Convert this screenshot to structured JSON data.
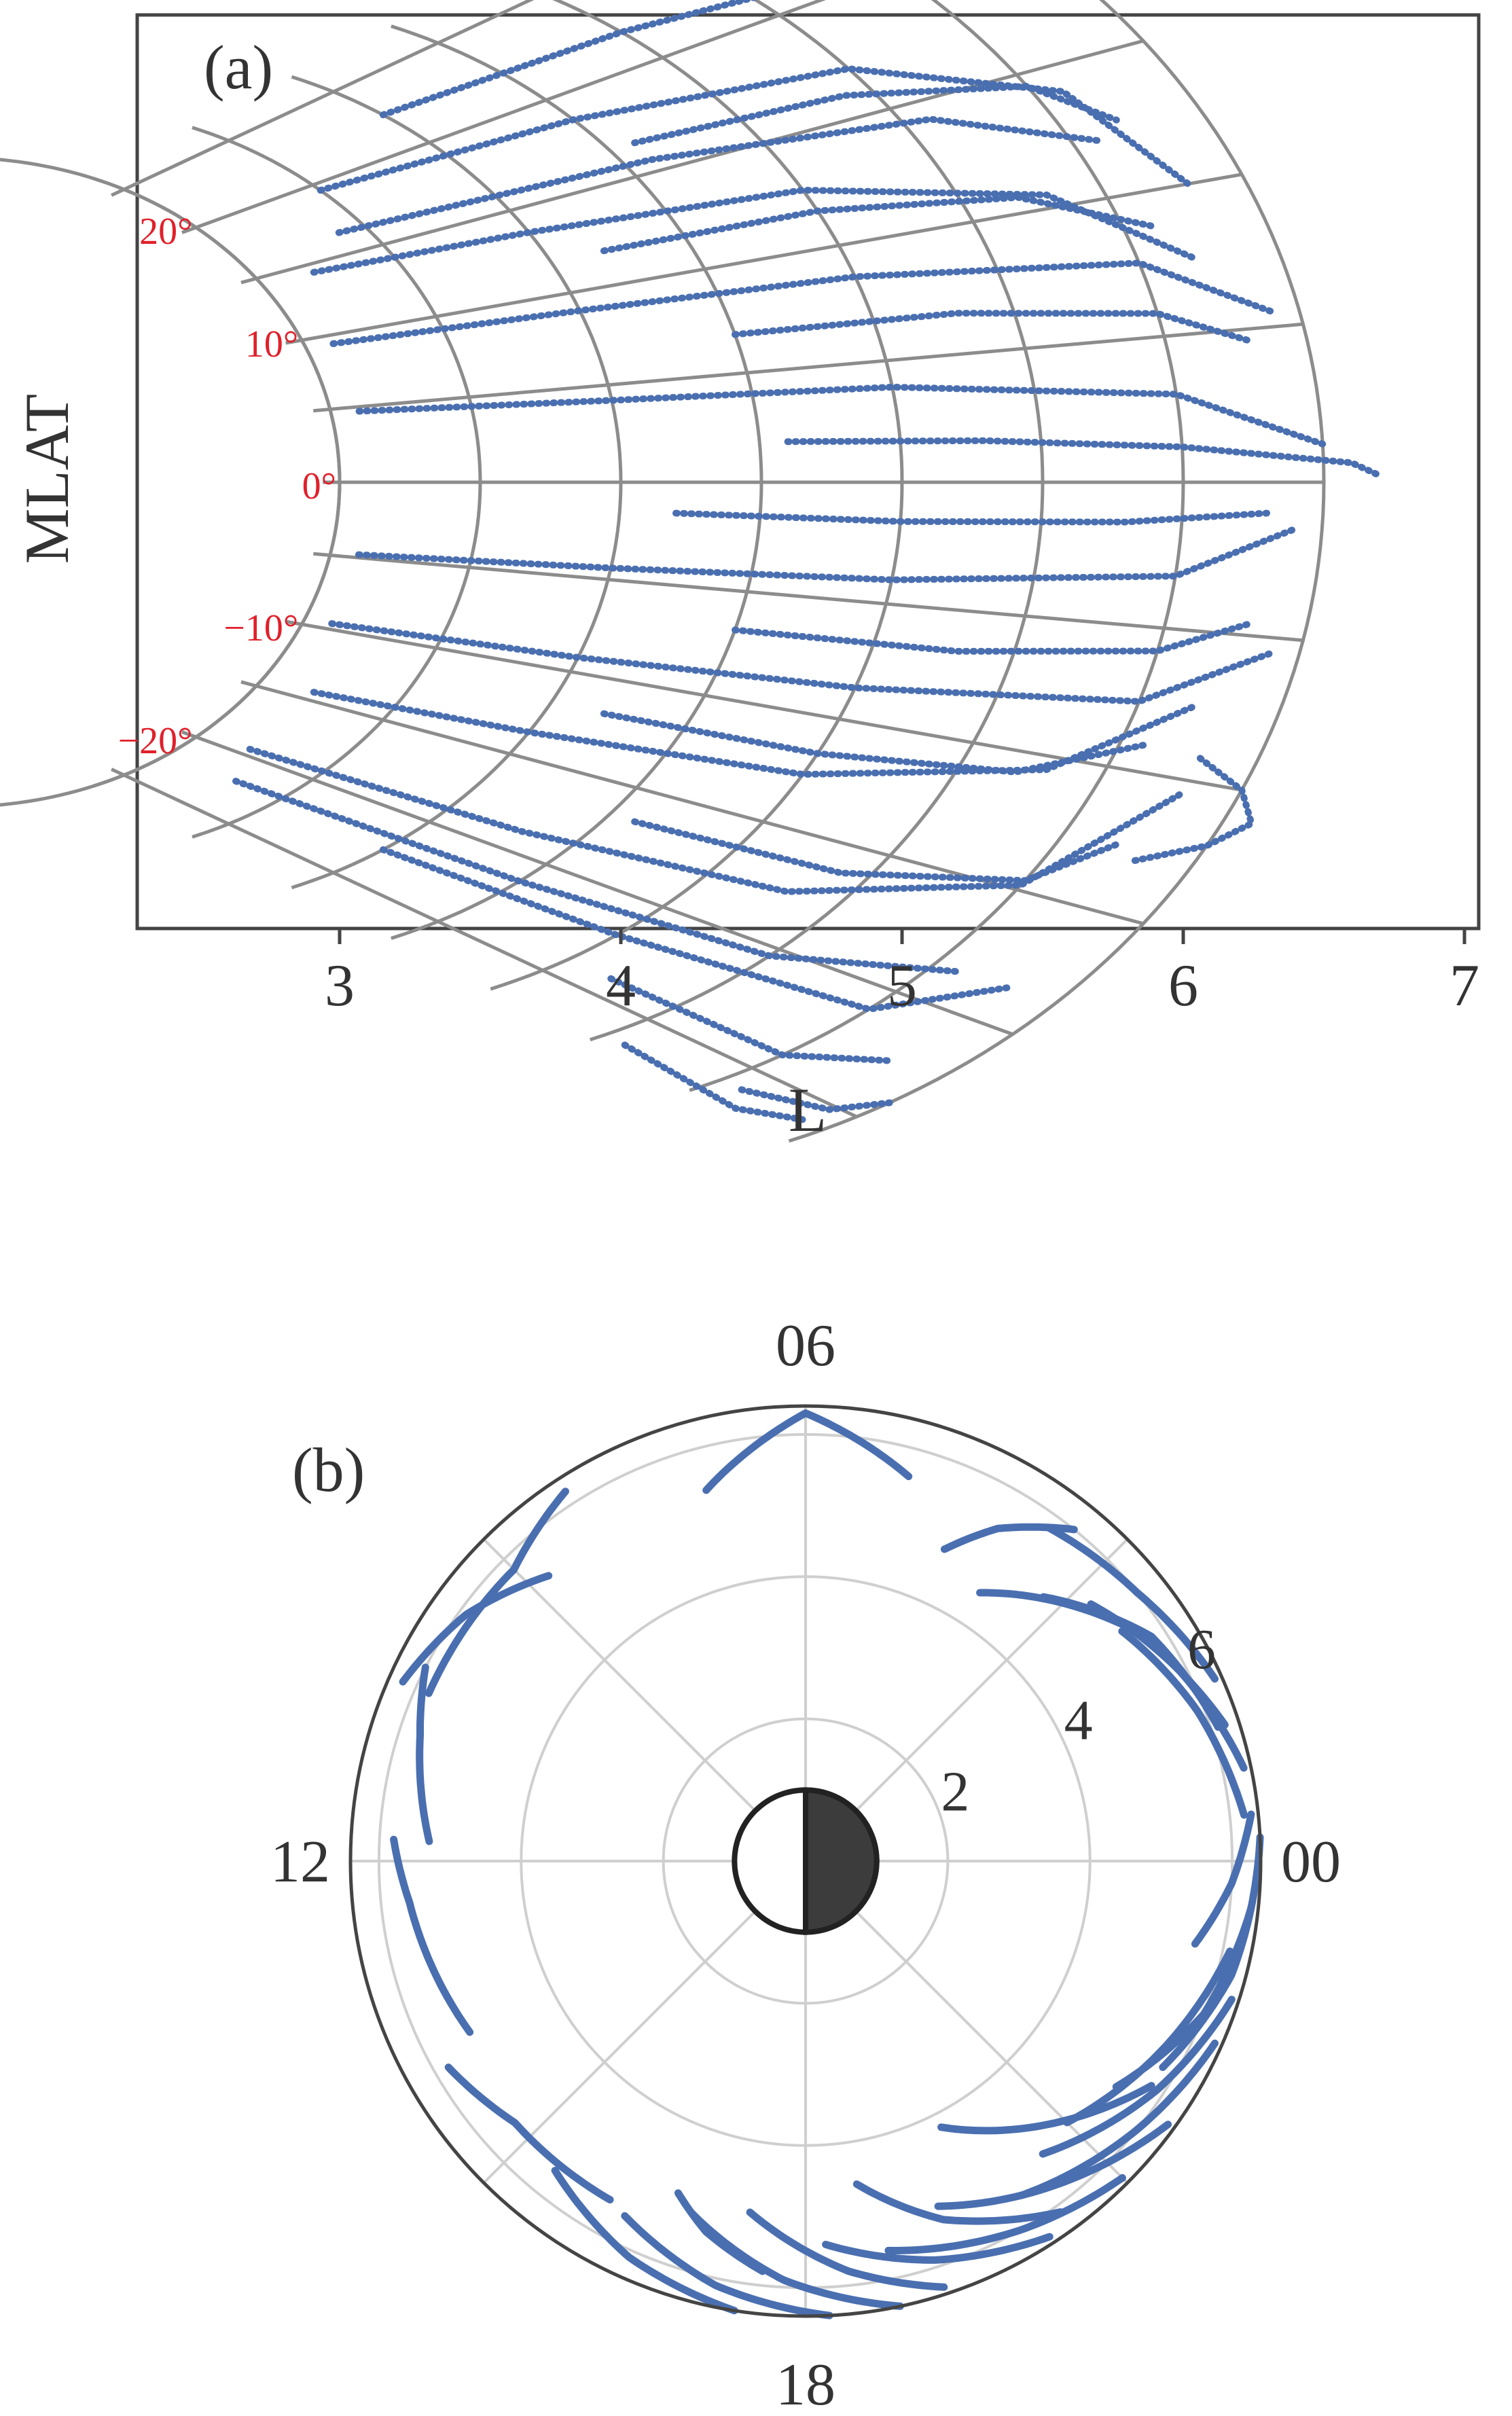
{
  "colors": {
    "trace": "#4a6fb0",
    "grid_a": "#8c8c8c",
    "grid_b": "#cfcfcf",
    "frame": "#444444",
    "text": "#333333",
    "mlat_label": "#e0202a",
    "earth_night": "#3c3c3c"
  },
  "chart_data": [
    {
      "panel_label": "(a)",
      "type": "scatter",
      "title": "",
      "xlabel": "L",
      "ylabel": "MLAT",
      "xlim": [
        2.4,
        7.0
      ],
      "x_ticks": [
        "3",
        "4",
        "5",
        "6",
        "7"
      ],
      "grid": "dipole field lines L = 3 to 6.5 and MLAT rays every 5 deg",
      "field_lines_L": [
        3.0,
        3.5,
        4.0,
        4.5,
        5.0,
        5.5,
        6.0,
        6.5
      ],
      "mlat_rays_deg": [
        -25,
        -20,
        -15,
        -10,
        -5,
        0,
        5,
        10,
        15,
        20,
        25
      ],
      "mlat_labels": [
        "20°",
        "10°",
        "0°",
        "−10°",
        "−20°"
      ],
      "mlat_label_values": [
        20,
        10,
        0,
        -10,
        -20
      ],
      "series": [
        {
          "values_description": "orbit segments as [L, MLAT deg] points",
          "segments": [
            [
              [
                3.1,
                4.7
              ],
              [
                4.0,
                4.2
              ],
              [
                5.0,
                3.9
              ],
              [
                6.0,
                3.0
              ],
              [
                6.5,
                1.2
              ]
            ],
            [
              [
                3.1,
                -4.8
              ],
              [
                4.0,
                -4.4
              ],
              [
                5.0,
                -4.0
              ],
              [
                6.0,
                -3.2
              ],
              [
                6.4,
                -1.5
              ]
            ],
            [
              [
                3.1,
                9.4
              ],
              [
                4.0,
                9.0
              ],
              [
                5.0,
                8.6
              ],
              [
                6.0,
                7.6
              ],
              [
                6.4,
                5.5
              ]
            ],
            [
              [
                3.1,
                -9.6
              ],
              [
                4.0,
                -9.2
              ],
              [
                5.0,
                -8.6
              ],
              [
                6.0,
                -7.6
              ],
              [
                6.4,
                -5.5
              ]
            ],
            [
              [
                3.2,
                14.4
              ],
              [
                4.0,
                13.6
              ],
              [
                5.0,
                12.6
              ],
              [
                5.8,
                10.5
              ],
              [
                6.2,
                7.5
              ]
            ],
            [
              [
                3.2,
                -14.4
              ],
              [
                4.0,
                -13.6
              ],
              [
                5.0,
                -12.6
              ],
              [
                5.8,
                -10.5
              ],
              [
                6.2,
                -7.5
              ]
            ],
            [
              [
                3.5,
                19.5
              ],
              [
                4.5,
                18.6
              ],
              [
                5.5,
                17.0
              ],
              [
                6.1,
                14.0
              ],
              [
                6.3,
                10.0
              ]
            ],
            [
              [
                3.2,
                -19.5
              ],
              [
                4.3,
                -18.8
              ],
              [
                5.3,
                -17.6
              ],
              [
                6.0,
                -14.8
              ],
              [
                6.3,
                -10.5
              ]
            ],
            [
              [
                4.0,
                22.5
              ],
              [
                5.0,
                21.8
              ],
              [
                6.0,
                20.5
              ],
              [
                6.3,
                18.0
              ]
            ],
            [
              [
                4.0,
                -22.5
              ],
              [
                5.0,
                -22.0
              ],
              [
                6.0,
                -21.0
              ],
              [
                6.3,
                -18.5
              ]
            ],
            [
              [
                4.6,
                1.8
              ],
              [
                5.3,
                1.6
              ],
              [
                6.0,
                1.2
              ],
              [
                6.6,
                0.6
              ],
              [
                6.7,
                0.2
              ]
            ],
            [
              [
                4.2,
                -1.5
              ],
              [
                5.0,
                -1.6
              ],
              [
                5.8,
                -1.4
              ],
              [
                6.3,
                -1.0
              ]
            ],
            [
              [
                4.5,
                6.8
              ],
              [
                5.3,
                6.6
              ],
              [
                6.0,
                5.8
              ],
              [
                6.3,
                4.6
              ]
            ],
            [
              [
                4.5,
                -6.8
              ],
              [
                5.3,
                -6.6
              ],
              [
                6.0,
                -5.8
              ],
              [
                6.3,
                -4.6
              ]
            ],
            [
              [
                4.2,
                11.8
              ],
              [
                5.0,
                11.6
              ],
              [
                5.7,
                10.6
              ],
              [
                6.1,
                8.8
              ]
            ],
            [
              [
                4.2,
                -11.8
              ],
              [
                5.0,
                -11.6
              ],
              [
                5.7,
                -10.8
              ],
              [
                6.1,
                -9.0
              ]
            ],
            [
              [
                4.6,
                16.6
              ],
              [
                5.4,
                16.0
              ],
              [
                6.0,
                14.5
              ],
              [
                6.2,
                12.6
              ]
            ],
            [
              [
                4.6,
                -16.6
              ],
              [
                5.4,
                -16.2
              ],
              [
                6.0,
                -14.6
              ],
              [
                6.2,
                -12.6
              ]
            ],
            [
              [
                5.2,
                24.0
              ],
              [
                6.0,
                23.8
              ],
              [
                6.4,
                22.5
              ]
            ],
            [
              [
                5.2,
                -24.0
              ],
              [
                6.0,
                -24.0
              ],
              [
                6.3,
                -22.5
              ]
            ],
            [
              [
                6.1,
                26.0
              ],
              [
                6.6,
                24.8
              ],
              [
                6.8,
                23.5
              ]
            ],
            [
              [
                6.1,
                -26.0
              ],
              [
                6.4,
                -25.2
              ],
              [
                6.5,
                -24.0
              ]
            ],
            [
              [
                6.3,
                -13.0
              ],
              [
                6.5,
                -12.0
              ],
              [
                6.6,
                -11.0
              ],
              [
                6.5,
                -10.0
              ],
              [
                6.3,
                -9.2
              ]
            ],
            [
              [
                3.3,
                -22.0
              ],
              [
                4.5,
                -21.3
              ],
              [
                5.5,
                -20.4
              ],
              [
                6.1,
                -18.5
              ]
            ],
            [
              [
                3.4,
                16.5
              ],
              [
                4.6,
                15.6
              ],
              [
                5.6,
                14.2
              ],
              [
                6.1,
                12.0
              ]
            ],
            [
              [
                5.6,
                -26.5
              ],
              [
                6.2,
                -26.8
              ],
              [
                6.4,
                -26.0
              ]
            ]
          ]
        }
      ]
    },
    {
      "panel_label": "(b)",
      "type": "scatter",
      "subtype": "polar",
      "title": "",
      "angle_labels": [
        "06",
        "12",
        "18",
        "00"
      ],
      "angle_label_mlt": [
        6,
        12,
        18,
        0
      ],
      "radial_ticks": [
        "2",
        "4",
        "6"
      ],
      "radial_tick_values": [
        2,
        4,
        6
      ],
      "rlim": [
        0,
        6.4
      ],
      "grid": "concentric circles at R = 2, 4, 6 and spokes every 3 h MLT",
      "earth": "day half white, night half dark, radius 1 Re",
      "series": [
        {
          "values_description": "orbit arcs as [MLT hours, R in Re] points",
          "segments": [
            [
              [
                7.0,
                5.4
              ],
              [
                6.0,
                6.3
              ],
              [
                5.0,
                5.6
              ]
            ],
            [
              [
                10.4,
                5.8
              ],
              [
                9.0,
                5.8
              ],
              [
                8.2,
                6.2
              ]
            ],
            [
              [
                11.8,
                5.3
              ],
              [
                10.8,
                5.7
              ],
              [
                10.2,
                6.0
              ]
            ],
            [
              [
                13.8,
                5.3
              ],
              [
                12.4,
                5.6
              ],
              [
                11.8,
                5.8
              ]
            ],
            [
              [
                16.0,
                5.5
              ],
              [
                14.8,
                5.5
              ],
              [
                14.0,
                5.8
              ]
            ],
            [
              [
                3.8,
                4.5
              ],
              [
                2.4,
                5.6
              ],
              [
                1.2,
                6.2
              ]
            ],
            [
              [
                3.2,
                5.0
              ],
              [
                2.2,
                5.8
              ],
              [
                1.2,
                6.1
              ]
            ],
            [
              [
                2.8,
                5.4
              ],
              [
                1.8,
                5.9
              ],
              [
                0.8,
                6.3
              ]
            ],
            [
              [
                3.6,
                5.8
              ],
              [
                2.6,
                6.0
              ],
              [
                1.6,
                6.3
              ]
            ],
            [
              [
                2.4,
                5.5
              ],
              [
                1.4,
                5.9
              ],
              [
                0.4,
                6.2
              ]
            ],
            [
              [
                22.0,
                5.8
              ],
              [
                23.0,
                6.2
              ],
              [
                0.2,
                6.4
              ]
            ],
            [
              [
                21.6,
                5.4
              ],
              [
                22.6,
                6.0
              ],
              [
                23.6,
                6.3
              ]
            ],
            [
              [
                21.0,
                5.2
              ],
              [
                22.2,
                5.7
              ],
              [
                23.2,
                6.1
              ]
            ],
            [
              [
                20.6,
                5.3
              ],
              [
                21.8,
                5.9
              ],
              [
                22.8,
                6.3
              ]
            ],
            [
              [
                20.2,
                5.6
              ],
              [
                21.4,
                6.0
              ],
              [
                22.4,
                6.3
              ]
            ],
            [
              [
                19.4,
                5.2
              ],
              [
                20.6,
                5.8
              ],
              [
                21.6,
                6.3
              ]
            ],
            [
              [
                18.8,
                5.6
              ],
              [
                20.0,
                6.0
              ],
              [
                21.0,
                6.3
              ]
            ],
            [
              [
                18.2,
                5.4
              ],
              [
                19.2,
                5.9
              ],
              [
                20.2,
                6.3
              ]
            ],
            [
              [
                17.4,
                5.0
              ],
              [
                18.4,
                5.8
              ],
              [
                19.2,
                6.3
              ]
            ],
            [
              [
                16.8,
                5.2
              ],
              [
                17.8,
                5.9
              ],
              [
                18.8,
                6.4
              ]
            ],
            [
              [
                16.2,
                5.6
              ],
              [
                17.2,
                6.1
              ],
              [
                18.2,
                6.4
              ]
            ],
            [
              [
                15.4,
                5.6
              ],
              [
                16.4,
                6.1
              ],
              [
                17.4,
                6.4
              ]
            ],
            [
              [
                19.8,
                4.2
              ],
              [
                20.8,
                5.0
              ],
              [
                21.8,
                5.8
              ]
            ],
            [
              [
                18.6,
                4.6
              ],
              [
                19.4,
                5.4
              ],
              [
                20.4,
                6.1
              ]
            ],
            [
              [
                8.8,
                5.4
              ],
              [
                9.6,
                5.9
              ],
              [
                10.4,
                6.2
              ]
            ],
            [
              [
                4.4,
                4.8
              ],
              [
                4.0,
                5.4
              ],
              [
                3.4,
                6.0
              ]
            ],
            [
              [
                16.6,
                5.0
              ],
              [
                17.0,
                5.4
              ],
              [
                17.6,
                5.8
              ]
            ],
            [
              [
                23.2,
                5.6
              ],
              [
                23.8,
                6.0
              ],
              [
                0.4,
                6.3
              ]
            ]
          ]
        }
      ]
    }
  ]
}
